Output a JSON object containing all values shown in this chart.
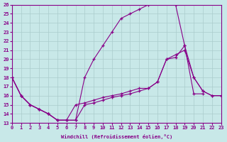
{
  "bg_color": "#c8e8e8",
  "line_color": "#880088",
  "grid_color": "#aacccc",
  "xlabel": "Windchill (Refroidissement éolien,°C)",
  "series1_x": [
    0,
    1,
    2,
    3,
    4,
    5,
    6,
    7,
    8,
    9,
    10,
    11,
    12,
    13,
    14,
    15,
    16,
    17,
    18,
    19,
    20,
    21
  ],
  "series1_y": [
    18,
    16,
    15,
    14.5,
    14,
    13.3,
    13.3,
    13.3,
    18,
    20,
    21.5,
    23,
    24.5,
    25,
    25.5,
    26,
    26.3,
    26.3,
    26.0,
    21.5,
    16.2,
    16.2
  ],
  "series2_x": [
    0,
    1,
    2,
    3,
    4,
    5,
    6,
    7,
    8,
    9,
    10,
    11,
    12,
    13,
    14,
    15,
    16,
    17,
    18,
    19,
    20,
    21,
    22,
    23
  ],
  "series2_y": [
    18,
    16,
    15,
    14.5,
    14,
    13.3,
    13.3,
    13.3,
    15.0,
    15.2,
    15.5,
    15.8,
    16.0,
    16.2,
    16.5,
    16.8,
    17.5,
    20.0,
    20.2,
    21.5,
    18.0,
    16.5,
    16.0,
    16.0
  ],
  "series3_x": [
    0,
    1,
    2,
    3,
    4,
    5,
    6,
    7,
    8,
    9,
    10,
    11,
    12,
    13,
    14,
    15,
    16,
    17,
    18,
    19,
    20,
    21,
    22,
    23
  ],
  "series3_y": [
    18,
    16,
    15,
    14.5,
    14,
    13.3,
    13.3,
    15.0,
    15.2,
    15.5,
    15.8,
    16.0,
    16.2,
    16.5,
    16.8,
    16.8,
    17.5,
    20.0,
    20.5,
    21.0,
    18.0,
    16.5,
    16.0,
    16.0
  ]
}
